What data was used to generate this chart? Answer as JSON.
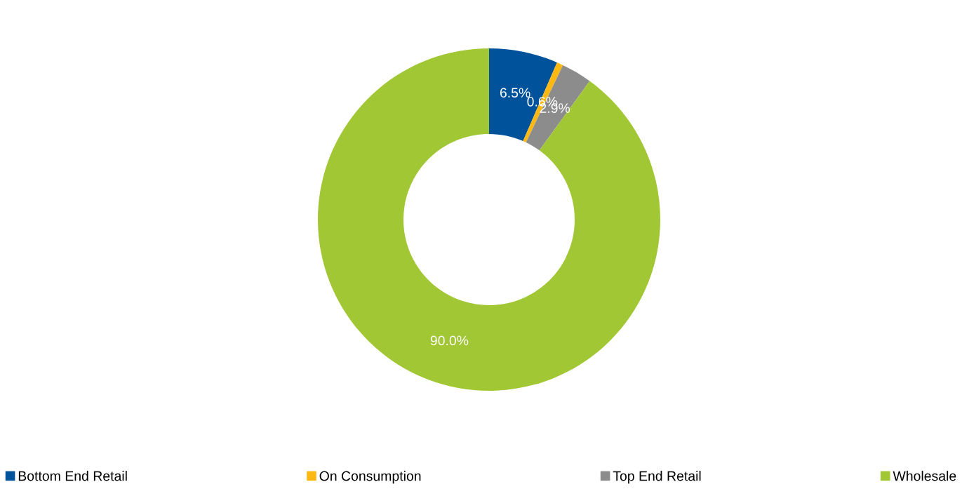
{
  "chart_data": {
    "type": "donut",
    "categories": [
      "Bottom End Retail",
      "On Consumption",
      "Top End Retail",
      "Wholesale"
    ],
    "values": [
      6.5,
      0.6,
      2.9,
      90.0
    ],
    "colors": [
      "#00529b",
      "#fdb913",
      "#8c8c8c",
      "#a2c735"
    ],
    "value_labels": [
      "6.5%",
      "0.6%",
      "2.9%",
      "90.0%"
    ],
    "legend": "bottom"
  }
}
